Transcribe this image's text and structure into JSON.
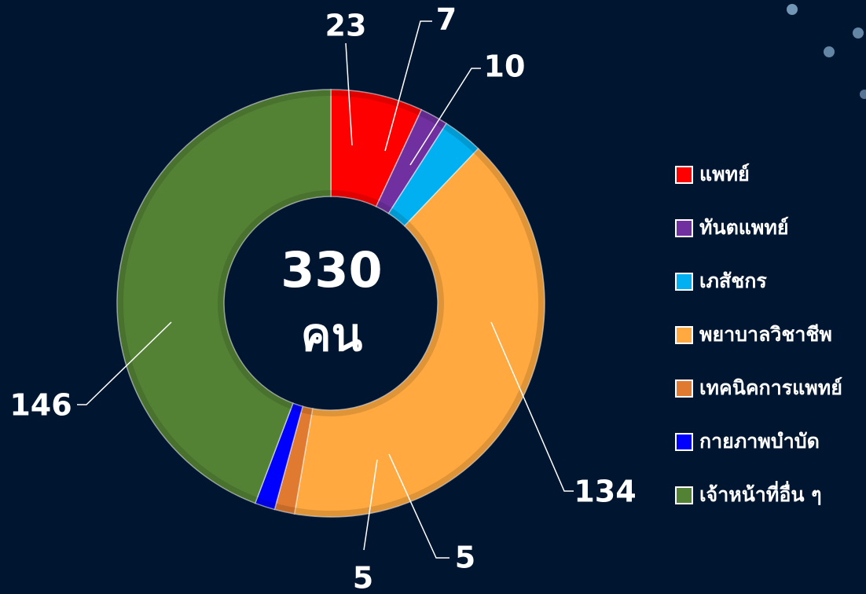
{
  "chart_data": {
    "type": "donut",
    "categories": [
      "แพทย์",
      "ทันตแพทย์",
      "เภสัชกร",
      "พยาบาลวิชาชีพ",
      "เทคนิคการแพทย์",
      "กายภาพบำบัด",
      "เจ้าหน้าที่อื่น ๆ"
    ],
    "values": [
      23,
      7,
      10,
      134,
      5,
      5,
      146
    ],
    "colors": [
      "#ff0000",
      "#7030a0",
      "#00b0f0",
      "#ffa940",
      "#e07a30",
      "#0000ff",
      "#548235"
    ],
    "center_value": 330,
    "center_label": "คน",
    "legend": "right"
  }
}
